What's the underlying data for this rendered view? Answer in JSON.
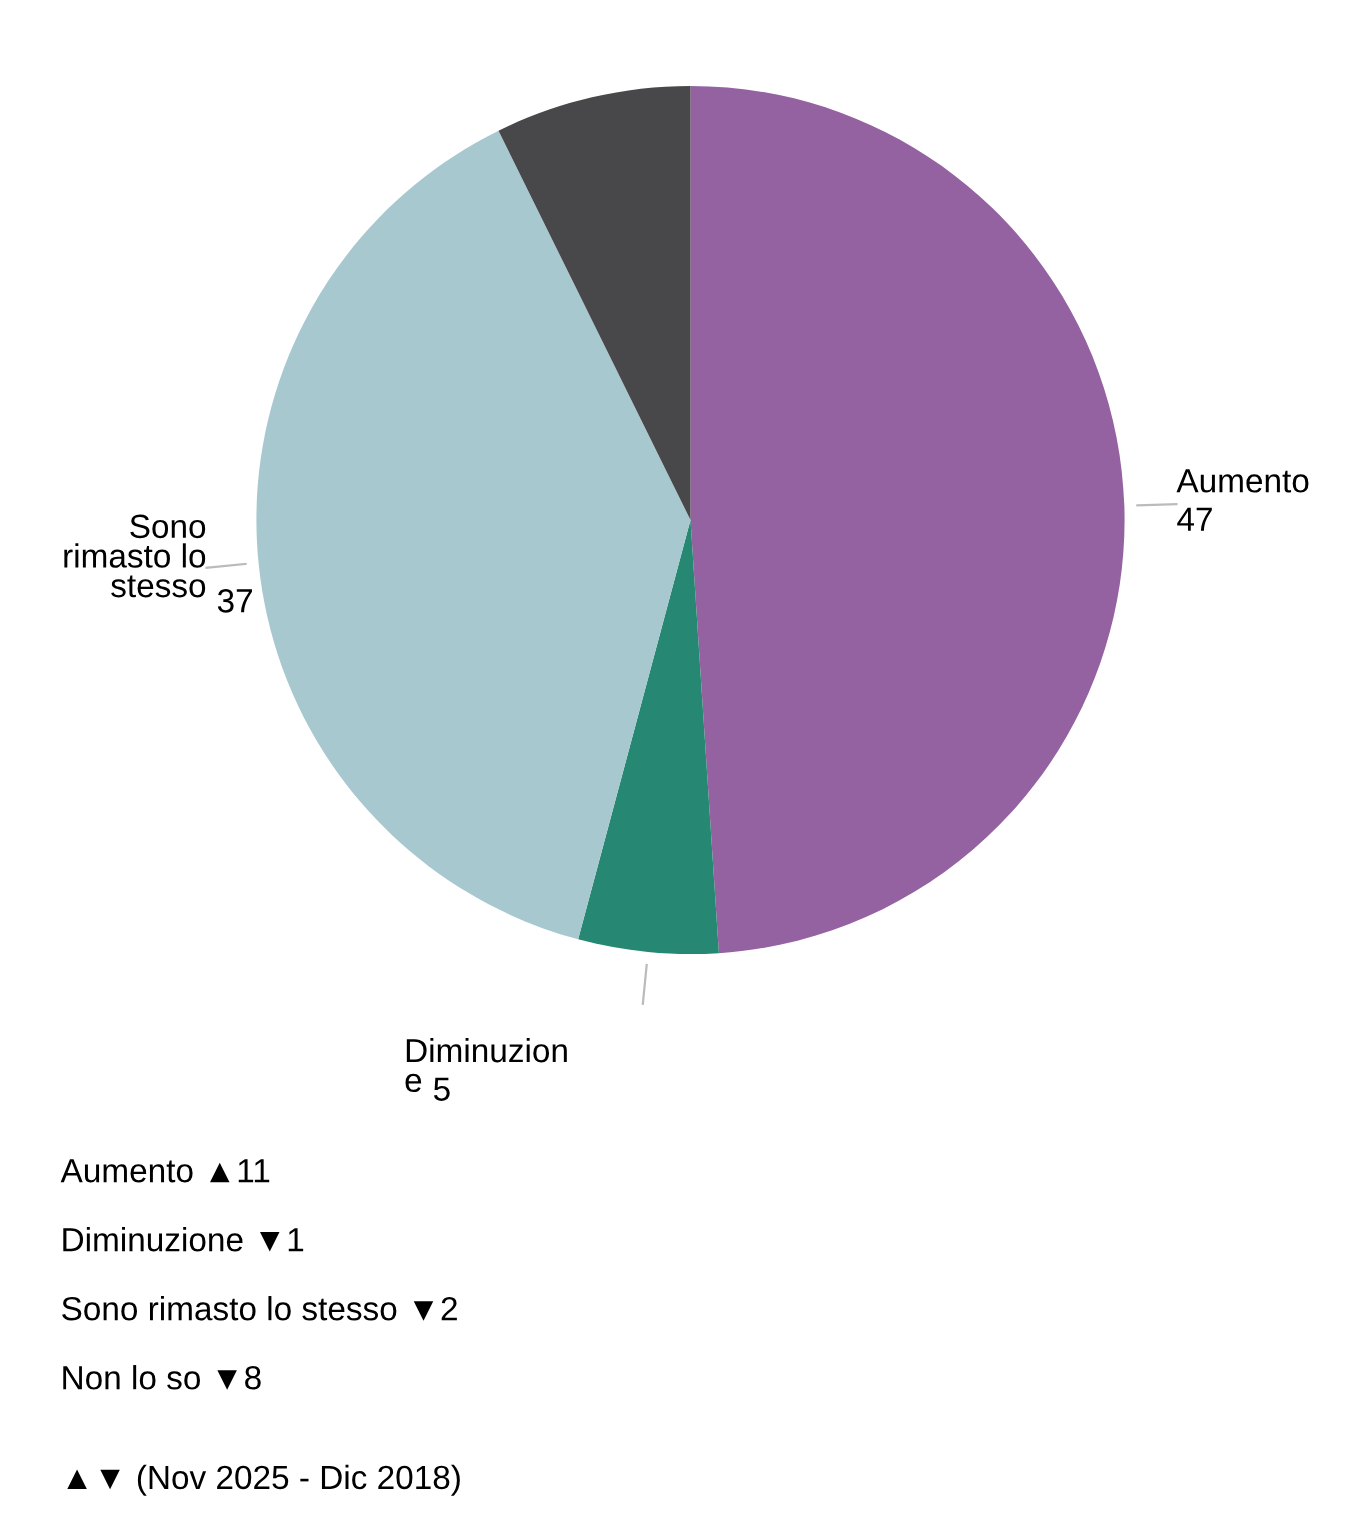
{
  "chart_data": {
    "type": "pie",
    "categories": [
      "Aumento",
      "Diminuzione",
      "Sono rimasto lo stesso",
      null
    ],
    "values": [
      47,
      5,
      37,
      7
    ],
    "value_labels": [
      "47",
      "5",
      "37",
      null
    ],
    "colors": [
      "#9562a1",
      "#268872",
      "#a8c8d0",
      "#48484b"
    ],
    "annotations": [
      "Aumento ▲11",
      "Diminuzione ▼1",
      "Sono rimasto lo stesso ▼2",
      "Non lo so ▼8",
      "▲▼ (Nov 2025 - Dic 2018)"
    ]
  }
}
